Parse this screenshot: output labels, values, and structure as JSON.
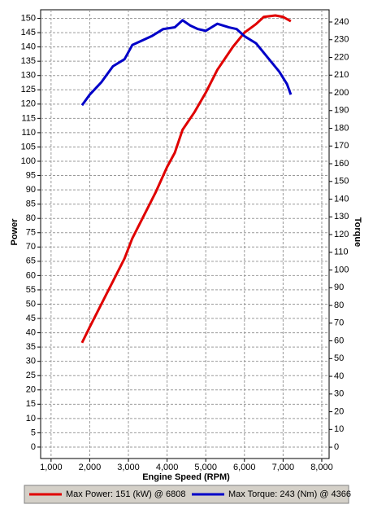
{
  "chart_data": {
    "type": "line",
    "x_label": "Engine Speed (RPM)",
    "y_label": "Power",
    "y2_label": "Torque",
    "y_label_color": "#e00000",
    "y2_label_color": "#0000c8",
    "xlim": [
      730,
      8190
    ],
    "xticks": [
      {
        "value": 1000,
        "label": "1,000"
      },
      {
        "value": 2000,
        "label": "2,000"
      },
      {
        "value": 3000,
        "label": "3,000"
      },
      {
        "value": 4000,
        "label": "4,000"
      },
      {
        "value": 5000,
        "label": "5,000"
      },
      {
        "value": 6000,
        "label": "6,000"
      },
      {
        "value": 7000,
        "label": "7,000"
      },
      {
        "value": 8000,
        "label": "8,000"
      }
    ],
    "ylim": [
      -4,
      153
    ],
    "yticks": [
      0,
      5,
      10,
      15,
      20,
      25,
      30,
      35,
      40,
      45,
      50,
      55,
      60,
      65,
      70,
      75,
      80,
      85,
      90,
      95,
      100,
      105,
      110,
      115,
      120,
      125,
      130,
      135,
      140,
      145,
      150
    ],
    "y2lim": [
      -6.4,
      246.9
    ],
    "y2ticks": [
      0,
      10,
      20,
      30,
      40,
      50,
      60,
      70,
      80,
      90,
      100,
      110,
      120,
      130,
      140,
      150,
      160,
      170,
      180,
      190,
      200,
      210,
      220,
      230,
      240
    ],
    "grid": true,
    "series": [
      {
        "name": "Max Power: 151 (kW) @ 6808",
        "color": "#e00000",
        "axis": "y",
        "x": [
          1800,
          2000,
          2300,
          2600,
          2900,
          3100,
          3400,
          3700,
          4000,
          4200,
          4400,
          4700,
          5000,
          5300,
          5700,
          6000,
          6300,
          6500,
          6800,
          7000,
          7200
        ],
        "values": [
          36.5,
          42,
          50,
          58,
          66,
          73,
          81,
          89,
          98,
          103,
          111,
          117,
          124,
          132,
          140,
          145,
          148,
          150.5,
          151,
          150.5,
          149
        ]
      },
      {
        "name": "Max Torque: 243 (Nm) @ 4366",
        "color": "#0000c8",
        "axis": "y2",
        "x": [
          1800,
          2000,
          2300,
          2600,
          2900,
          3100,
          3400,
          3600,
          3900,
          4200,
          4400,
          4600,
          4800,
          5000,
          5300,
          5600,
          5800,
          6000,
          6300,
          6600,
          6900,
          7100,
          7200
        ],
        "values": [
          193,
          199,
          206,
          215,
          219,
          227,
          230,
          232,
          236,
          237,
          241,
          238,
          236,
          235,
          239,
          237,
          236,
          232,
          228,
          220,
          212,
          205,
          199
        ]
      }
    ]
  }
}
